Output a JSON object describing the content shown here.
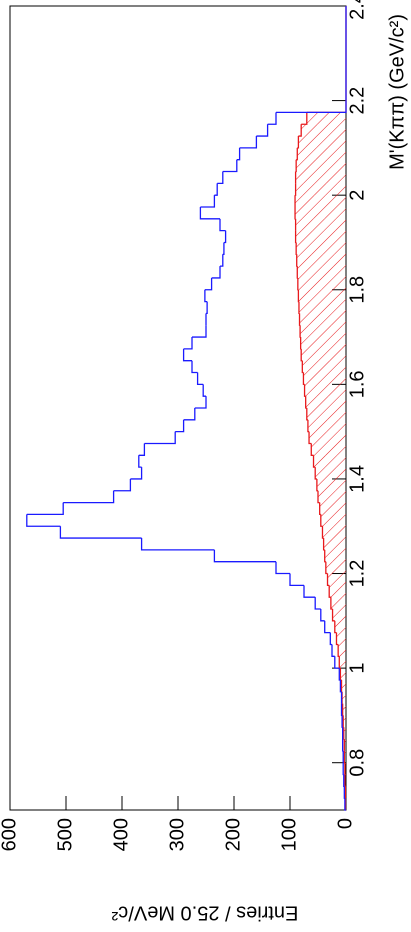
{
  "chart_data": {
    "type": "histogram",
    "x_label": "M'(Kππ) (GeV/c²)",
    "y_label": "Entries / 25.0 MeV/c²",
    "bins": [
      0.7,
      0.725,
      0.75,
      0.775,
      0.8,
      0.825,
      0.85,
      0.875,
      0.9,
      0.925,
      0.95,
      0.975,
      1.0,
      1.025,
      1.05,
      1.075,
      1.1,
      1.125,
      1.15,
      1.175,
      1.2,
      1.225,
      1.25,
      1.275,
      1.3,
      1.325,
      1.35,
      1.375,
      1.4,
      1.425,
      1.45,
      1.475,
      1.5,
      1.525,
      1.55,
      1.575,
      1.6,
      1.625,
      1.65,
      1.675,
      1.7,
      1.725,
      1.75,
      1.775,
      1.8,
      1.825,
      1.85,
      1.875,
      1.9,
      1.925,
      1.95,
      1.975,
      2.0,
      2.025,
      2.05,
      2.075,
      2.1,
      2.125,
      2.15,
      2.175,
      2.2,
      2.225,
      2.25,
      2.275,
      2.3,
      2.325,
      2.35,
      2.375,
      2.4
    ],
    "series": [
      {
        "color": "#1a1aff",
        "values": [
          2,
          3,
          4,
          5,
          5,
          6,
          6,
          7,
          8,
          8,
          10,
          12,
          20,
          25,
          28,
          38,
          45,
          55,
          75,
          100,
          125,
          235,
          365,
          510,
          570,
          505,
          415,
          385,
          365,
          370,
          360,
          305,
          290,
          270,
          250,
          255,
          265,
          275,
          290,
          275,
          250,
          250,
          248,
          252,
          240,
          225,
          220,
          218,
          215,
          225,
          260,
          235,
          230,
          220,
          195,
          190,
          160,
          140,
          125,
          0,
          0,
          0,
          0,
          0,
          0,
          0,
          0,
          0,
          0
        ]
      },
      {
        "color": "#e8191c",
        "hatched": true,
        "values": [
          1,
          1,
          2,
          2,
          3,
          3,
          4,
          5,
          6,
          7,
          8,
          10,
          12,
          14,
          17,
          20,
          24,
          27,
          30,
          33,
          36,
          38,
          40,
          42,
          45,
          47,
          50,
          52,
          55,
          58,
          62,
          66,
          68,
          70,
          72,
          74,
          76,
          78,
          80,
          81,
          82,
          83,
          84,
          85,
          86,
          87,
          88,
          89,
          90,
          90,
          91,
          91,
          90,
          90,
          89,
          87,
          85,
          80,
          70,
          0,
          0,
          0,
          0,
          0,
          0,
          0,
          0,
          0,
          0
        ]
      }
    ],
    "xlim": [
      0.7,
      2.4
    ],
    "xticks": [
      0.8,
      1,
      1.2,
      1.4,
      1.6,
      1.8,
      2,
      2.2,
      2.4
    ],
    "ylim": [
      0,
      600
    ],
    "yticks": [
      0,
      100,
      200,
      300,
      400,
      500,
      600
    ]
  }
}
